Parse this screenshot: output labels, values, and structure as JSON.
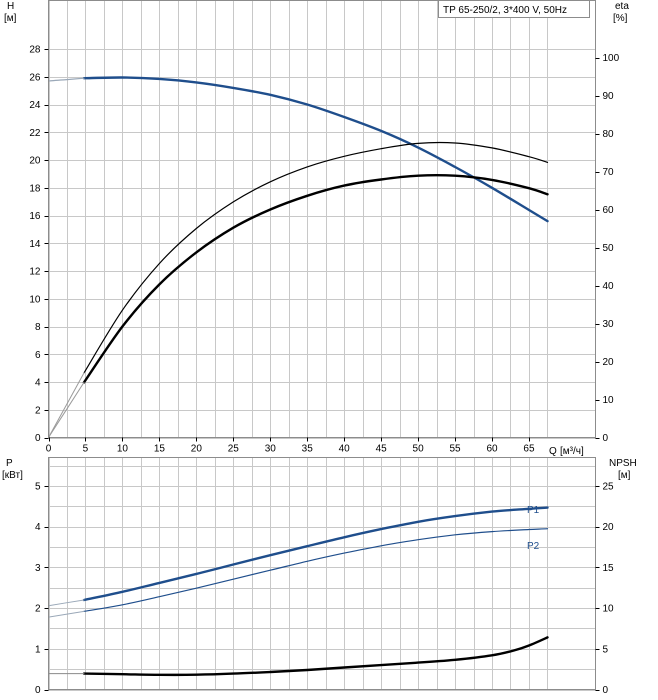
{
  "chart_data": [
    {
      "type": "line",
      "panel": "top",
      "title": "TP 65-250/2, 3*400 V, 50Hz",
      "ylabel": "H",
      "yunit": "[м]",
      "y2label": "eta",
      "y2unit": "[%]",
      "xlabel": "Q",
      "xunit": "[м³/ч]",
      "xlim": [
        0,
        74
      ],
      "ylim": [
        0,
        31.5
      ],
      "y2lim": [
        0,
        115
      ],
      "xticks": [
        0,
        5,
        10,
        15,
        20,
        25,
        30,
        35,
        40,
        45,
        50,
        55,
        60,
        65
      ],
      "yticks": [
        0,
        2,
        4,
        6,
        8,
        10,
        12,
        14,
        16,
        18,
        20,
        22,
        24,
        26,
        28
      ],
      "y2ticks": [
        0,
        10,
        20,
        30,
        40,
        50,
        60,
        70,
        80,
        90,
        100
      ],
      "grid": true,
      "series": [
        {
          "key": "H",
          "axis": "left",
          "color": "#1f4e8c",
          "width": 2.4,
          "x": [
            4.8,
            10,
            15,
            20,
            25,
            30,
            35,
            40,
            45,
            50,
            55,
            60,
            65,
            67.5
          ],
          "y": [
            25.9,
            25.95,
            25.85,
            25.6,
            25.2,
            24.7,
            24.0,
            23.1,
            22.1,
            20.9,
            19.5,
            18.0,
            16.4,
            15.6
          ]
        },
        {
          "key": "H-ext",
          "axis": "left",
          "color": "#9aa8b8",
          "width": 1.2,
          "x": [
            0,
            2.5,
            4.8
          ],
          "y": [
            25.7,
            25.8,
            25.9
          ]
        },
        {
          "key": "eta-thin",
          "axis": "right",
          "color": "#000000",
          "width": 1.2,
          "x": [
            4.8,
            10,
            15,
            20,
            25,
            30,
            35,
            40,
            45,
            50,
            55,
            60,
            65,
            67.5
          ],
          "y": [
            17.0,
            33.5,
            45.8,
            55.0,
            62.0,
            67.3,
            71.2,
            74.0,
            76.0,
            77.4,
            77.5,
            76.2,
            73.9,
            72.4
          ]
        },
        {
          "key": "eta-thin-ext",
          "axis": "right",
          "color": "#9a9a9a",
          "width": 1.0,
          "x": [
            0,
            4.8
          ],
          "y": [
            0,
            17.0
          ]
        },
        {
          "key": "eta",
          "axis": "right",
          "color": "#000000",
          "width": 2.4,
          "x": [
            4.8,
            10,
            15,
            20,
            25,
            30,
            35,
            40,
            45,
            50,
            55,
            60,
            65,
            67.5
          ],
          "y": [
            14.5,
            29.2,
            40.3,
            48.7,
            55.2,
            60.0,
            63.6,
            66.3,
            67.9,
            68.9,
            68.9,
            67.8,
            65.6,
            64.0
          ]
        },
        {
          "key": "eta-ext",
          "axis": "right",
          "color": "#9a9a9a",
          "width": 1.0,
          "x": [
            0,
            4.8
          ],
          "y": [
            0,
            14.5
          ]
        }
      ]
    },
    {
      "type": "line",
      "panel": "bottom",
      "ylabel": "P",
      "yunit": "[кВт]",
      "y2label": "NPSH",
      "y2unit": "[м]",
      "xlim": [
        0,
        74
      ],
      "ylim": [
        0,
        5.7
      ],
      "y2lim": [
        0,
        28.5
      ],
      "yticks": [
        0,
        1,
        2,
        3,
        4,
        5
      ],
      "y2ticks": [
        0,
        5,
        10,
        15,
        20,
        25
      ],
      "grid": true,
      "series": [
        {
          "key": "P1",
          "name": "P1",
          "axis": "left",
          "color": "#1f4e8c",
          "width": 2.4,
          "x": [
            4.8,
            10,
            15,
            20,
            25,
            30,
            35,
            40,
            45,
            50,
            55,
            60,
            65,
            67.5
          ],
          "y": [
            2.2,
            2.4,
            2.62,
            2.84,
            3.07,
            3.3,
            3.52,
            3.74,
            3.94,
            4.12,
            4.26,
            4.37,
            4.44,
            4.47
          ]
        },
        {
          "key": "P1-ext",
          "axis": "left",
          "color": "#9aa8b8",
          "width": 1.0,
          "x": [
            0,
            4.8
          ],
          "y": [
            2.06,
            2.2
          ]
        },
        {
          "key": "P2",
          "name": "P2",
          "axis": "left",
          "color": "#1f4e8c",
          "width": 1.2,
          "x": [
            4.8,
            10,
            15,
            20,
            25,
            30,
            35,
            40,
            45,
            50,
            55,
            60,
            65,
            67.5
          ],
          "y": [
            1.92,
            2.08,
            2.28,
            2.49,
            2.71,
            2.93,
            3.15,
            3.35,
            3.53,
            3.68,
            3.8,
            3.88,
            3.93,
            3.95
          ]
        },
        {
          "key": "P2-ext",
          "axis": "left",
          "color": "#9aa8b8",
          "width": 1.0,
          "x": [
            0,
            4.8
          ],
          "y": [
            1.78,
            1.92
          ]
        },
        {
          "key": "NPSH",
          "axis": "right",
          "color": "#000000",
          "width": 2.4,
          "x": [
            4.8,
            10,
            15,
            20,
            25,
            30,
            35,
            40,
            45,
            50,
            55,
            60,
            63,
            65,
            67.5
          ],
          "y": [
            1.95,
            1.88,
            1.8,
            1.82,
            1.95,
            2.15,
            2.4,
            2.7,
            3.0,
            3.3,
            3.65,
            4.2,
            4.8,
            5.4,
            6.4
          ]
        },
        {
          "key": "NPSH-ext",
          "axis": "right",
          "color": "#8a8a8a",
          "width": 1.0,
          "x": [
            0,
            4.8
          ],
          "y": [
            1.95,
            1.95
          ]
        }
      ]
    }
  ]
}
